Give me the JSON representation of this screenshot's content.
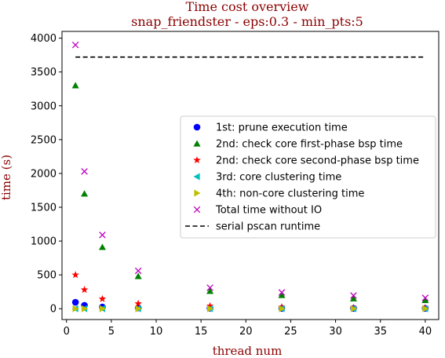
{
  "chart_data": {
    "type": "scatter",
    "title": "Time cost overview",
    "subtitle": "snap_friendster - eps:0.3 - min_pts:5",
    "xlabel": "thread num",
    "ylabel": "time (s)",
    "xlim": [
      -0.5,
      41.5
    ],
    "ylim": [
      -160,
      4100
    ],
    "xticks": [
      0,
      5,
      10,
      15,
      20,
      25,
      30,
      35,
      40
    ],
    "yticks": [
      0,
      500,
      1000,
      1500,
      2000,
      2500,
      3000,
      3500,
      4000
    ],
    "grid": false,
    "legend_position": "center-right",
    "x": [
      1,
      2,
      4,
      8,
      16,
      24,
      32,
      40
    ],
    "series": [
      {
        "name": "1st: prune execution time",
        "marker": "circle",
        "color": "#0000ff",
        "values": [
          95,
          50,
          25,
          12,
          7,
          5,
          4,
          4
        ]
      },
      {
        "name": "2nd: check core first-phase bsp time",
        "marker": "triangle-up",
        "color": "#008000",
        "values": [
          3300,
          1700,
          910,
          480,
          260,
          200,
          150,
          125
        ]
      },
      {
        "name": "2nd: check core second-phase bsp time",
        "marker": "star",
        "color": "#ff0000",
        "values": [
          500,
          280,
          145,
          75,
          40,
          25,
          15,
          12
        ]
      },
      {
        "name": "3rd: core clustering time",
        "marker": "triangle-left",
        "color": "#00bfbf",
        "values": [
          0,
          0,
          0,
          0,
          0,
          0,
          0,
          0
        ]
      },
      {
        "name": "4th: non-core clustering time",
        "marker": "triangle-right",
        "color": "#bfbf00",
        "values": [
          0,
          0,
          0,
          0,
          0,
          0,
          0,
          0
        ]
      },
      {
        "name": "Total time without IO",
        "marker": "x",
        "color": "#bf00bf",
        "values": [
          3900,
          2030,
          1090,
          560,
          310,
          240,
          195,
          160
        ]
      }
    ],
    "reference_line": {
      "name": "serial pscan runtime",
      "style": "dashed",
      "color": "#000000",
      "value": 3720,
      "x_range": [
        1,
        40
      ]
    }
  }
}
